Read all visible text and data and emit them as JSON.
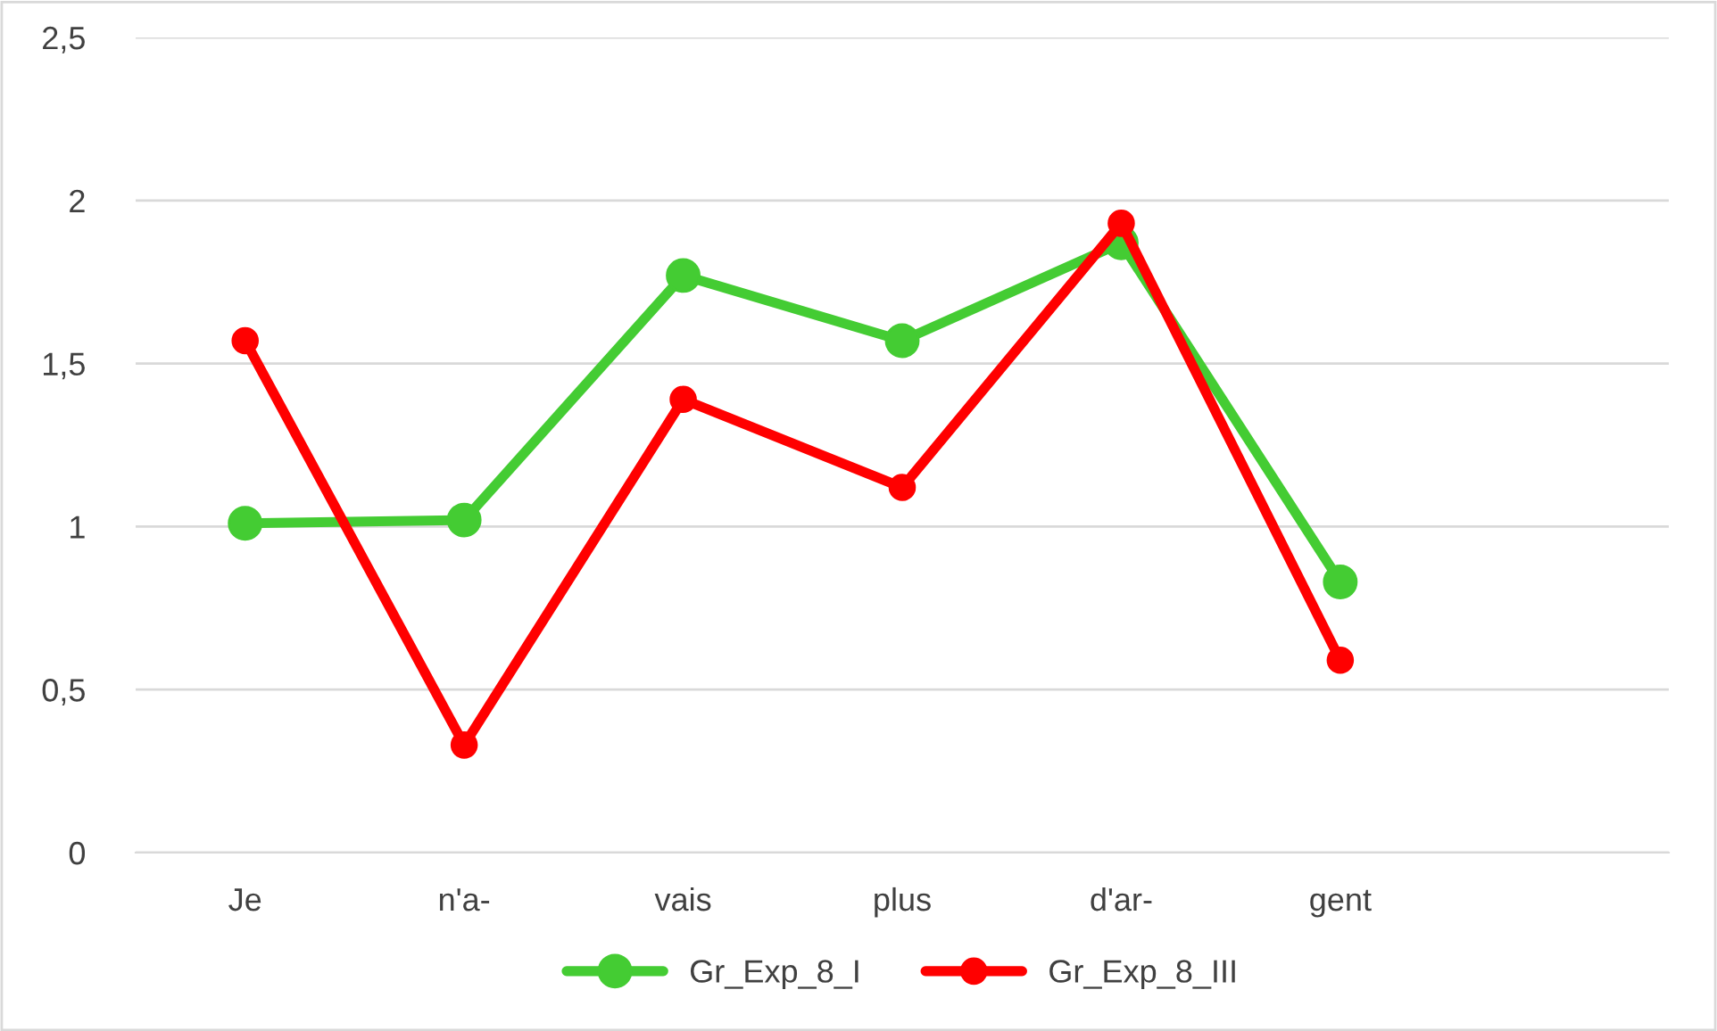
{
  "chart_data": {
    "type": "line",
    "categories": [
      "Je",
      "n'a-",
      "vais",
      "plus",
      "d'ar-",
      "gent",
      null
    ],
    "series": [
      {
        "name": "Gr_Exp_8_I",
        "color": "#44cc33",
        "values": [
          1.01,
          1.02,
          1.77,
          1.57,
          1.87,
          0.83,
          null
        ]
      },
      {
        "name": "Gr_Exp_8_III",
        "color": "#ff0000",
        "values": [
          1.57,
          0.33,
          1.39,
          1.12,
          1.93,
          0.59,
          null
        ]
      }
    ],
    "ylim": [
      0,
      2.5
    ],
    "yticks": [
      0,
      {
        "value": 0.5,
        "label": "0,5"
      },
      1,
      {
        "value": 1.5,
        "label": "1,5"
      },
      2,
      {
        "value": 2.5,
        "label": "2,5"
      }
    ],
    "grid": "y",
    "legend": "bottom",
    "marker": "circle",
    "line_style": "solid"
  }
}
